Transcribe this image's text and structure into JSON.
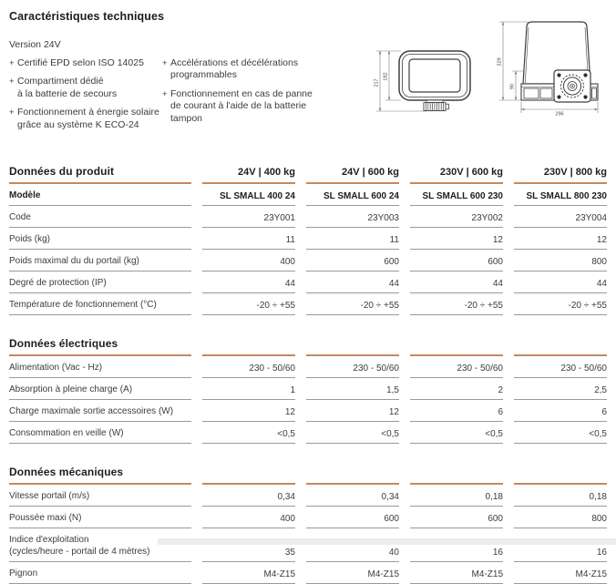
{
  "header": {
    "title": "Caractéristiques techniques",
    "version_label": "Version 24V"
  },
  "features": {
    "bullet": "+",
    "col1": [
      "Certifié EPD selon ISO 14025",
      "Compartiment dédié\nà la batterie de secours",
      "Fonctionnement à énergie solaire\ngrâce au système K ECO-24"
    ],
    "col2": [
      "Accélérations et décélérations\nprogrammables",
      "Fonctionnement en cas de panne\nde courant à l'aide de la batterie\ntampon"
    ]
  },
  "drawings": {
    "front": {
      "dim_outer": "217",
      "dim_inner": "182"
    },
    "side": {
      "dim_height": "329",
      "dim_plate": "90",
      "dim_width": "296"
    }
  },
  "colors": {
    "accent": "#C5885C",
    "heading_text": "#1d1d1b",
    "body_text": "#3c3c3b",
    "row_line": "#9a9a99"
  },
  "tables": [
    {
      "section": "Données du produit",
      "column_headers": [
        "24V | 400 kg",
        "24V | 600 kg",
        "230V | 600 kg",
        "230V | 800 kg"
      ],
      "rows": [
        {
          "label": "Modèle",
          "bold": true,
          "values": [
            "SL SMALL 400 24",
            "SL SMALL 600 24",
            "SL SMALL 600 230",
            "SL SMALL 800 230"
          ]
        },
        {
          "label": "Code",
          "values": [
            "23Y001",
            "23Y003",
            "23Y002",
            "23Y004"
          ]
        },
        {
          "label": "Poids (kg)",
          "values": [
            "11",
            "11",
            "12",
            "12"
          ]
        },
        {
          "label": "Poids maximal du du portail (kg)",
          "values": [
            "400",
            "600",
            "600",
            "800"
          ]
        },
        {
          "label": "Degré de protection (IP)",
          "values": [
            "44",
            "44",
            "44",
            "44"
          ]
        },
        {
          "label": "Température de fonctionnement (°C)",
          "values": [
            "-20 ÷ +55",
            "-20 ÷ +55",
            "-20 ÷ +55",
            "-20 ÷ +55"
          ]
        }
      ]
    },
    {
      "section": "Données électriques",
      "rows": [
        {
          "label": "Alimentation (Vac - Hz)",
          "values": [
            "230 - 50/60",
            "230 - 50/60",
            "230 - 50/60",
            "230 - 50/60"
          ]
        },
        {
          "label": "Absorption à pleine charge (A)",
          "values": [
            "1",
            "1,5",
            "2",
            "2,5"
          ]
        },
        {
          "label": "Charge maximale sortie accessoires (W)",
          "values": [
            "12",
            "12",
            "6",
            "6"
          ]
        },
        {
          "label": "Consommation en veille (W)",
          "values": [
            "<0,5",
            "<0,5",
            "<0,5",
            "<0,5"
          ]
        }
      ]
    },
    {
      "section": "Données mécaniques",
      "rows": [
        {
          "label": "Vitesse portail (m/s)",
          "values": [
            "0,34",
            "0,34",
            "0,18",
            "0,18"
          ]
        },
        {
          "label": "Poussée maxi (N)",
          "values": [
            "400",
            "600",
            "600",
            "800"
          ]
        },
        {
          "label": "Indice d'exploitation\n(cycles/heure - portail de 4 mètres)",
          "values": [
            "35",
            "40",
            "16",
            "16"
          ]
        },
        {
          "label": "Pignon",
          "values": [
            "M4-Z15",
            "M4-Z15",
            "M4-Z15",
            "M4-Z15"
          ]
        }
      ]
    }
  ]
}
